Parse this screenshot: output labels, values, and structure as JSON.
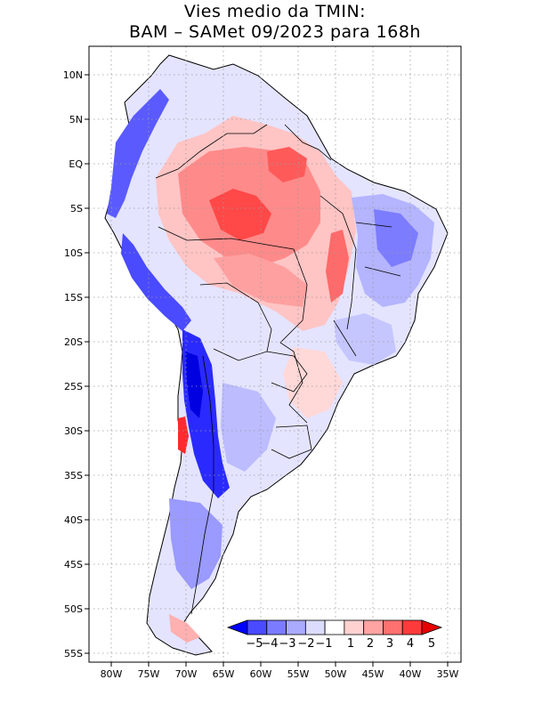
{
  "title": {
    "line1": "Vies medio da TMIN:",
    "line2": "BAM – SAMet 09/2023  para 168h"
  },
  "map": {
    "region": "South America",
    "lon_range": [
      -83,
      -34
    ],
    "lat_range": [
      -56,
      13
    ],
    "lat_ticks": [
      "10N",
      "5N",
      "EQ",
      "5S",
      "10S",
      "15S",
      "20S",
      "25S",
      "30S",
      "35S",
      "40S",
      "45S",
      "50S",
      "55S"
    ],
    "lon_ticks": [
      "80W",
      "75W",
      "70W",
      "65W",
      "60W",
      "55W",
      "50W",
      "45W",
      "40W",
      "35W"
    ],
    "grid": "dotted every 5 degrees"
  },
  "colorbar": {
    "labels": [
      "−5",
      "−4",
      "−3",
      "−2",
      "−1",
      "1",
      "2",
      "3",
      "4",
      "5"
    ],
    "colors": [
      "#0000ff",
      "#4a4aff",
      "#7b7bff",
      "#aaaaff",
      "#dcdcff",
      "#ffffff",
      "#ffd2d2",
      "#ffa3a3",
      "#ff7070",
      "#ff3a3a",
      "#e60000"
    ]
  },
  "colors": {
    "strong_cold": "#1a1aff",
    "cold": "#7b7bff",
    "light_cold": "#d4d4ff",
    "light_warm": "#ffd2d2",
    "warm": "#ff8080",
    "strong_warm": "#ff3030"
  }
}
